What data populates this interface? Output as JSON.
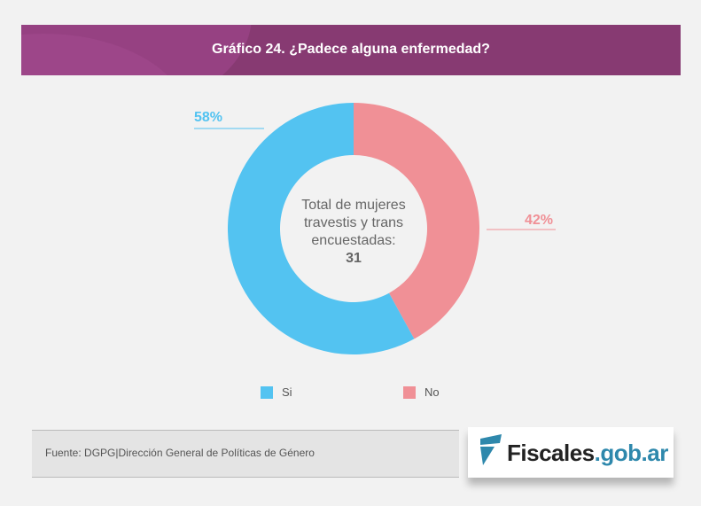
{
  "header": {
    "title": "Gráfico 24. ¿Padece alguna enfermedad?"
  },
  "chart_data": {
    "type": "pie",
    "variant": "donut",
    "title": "Gráfico 24. ¿Padece alguna enfermedad?",
    "categories": [
      "No",
      "Si"
    ],
    "values": [
      42,
      58
    ],
    "labels": [
      "42%",
      "58%"
    ],
    "colors": [
      "#f09096",
      "#53c3f1"
    ],
    "center_text": "Total de mujeres travestis y trans encuestadas:",
    "center_value": "31",
    "legend": [
      "Si",
      "No"
    ],
    "legend_placement": "bottom"
  },
  "footer": {
    "source": "Fuente: DGPG|Dirección General de Políticas de Género",
    "logo_main": "Fiscales",
    "logo_suffix": ".gob.ar"
  }
}
